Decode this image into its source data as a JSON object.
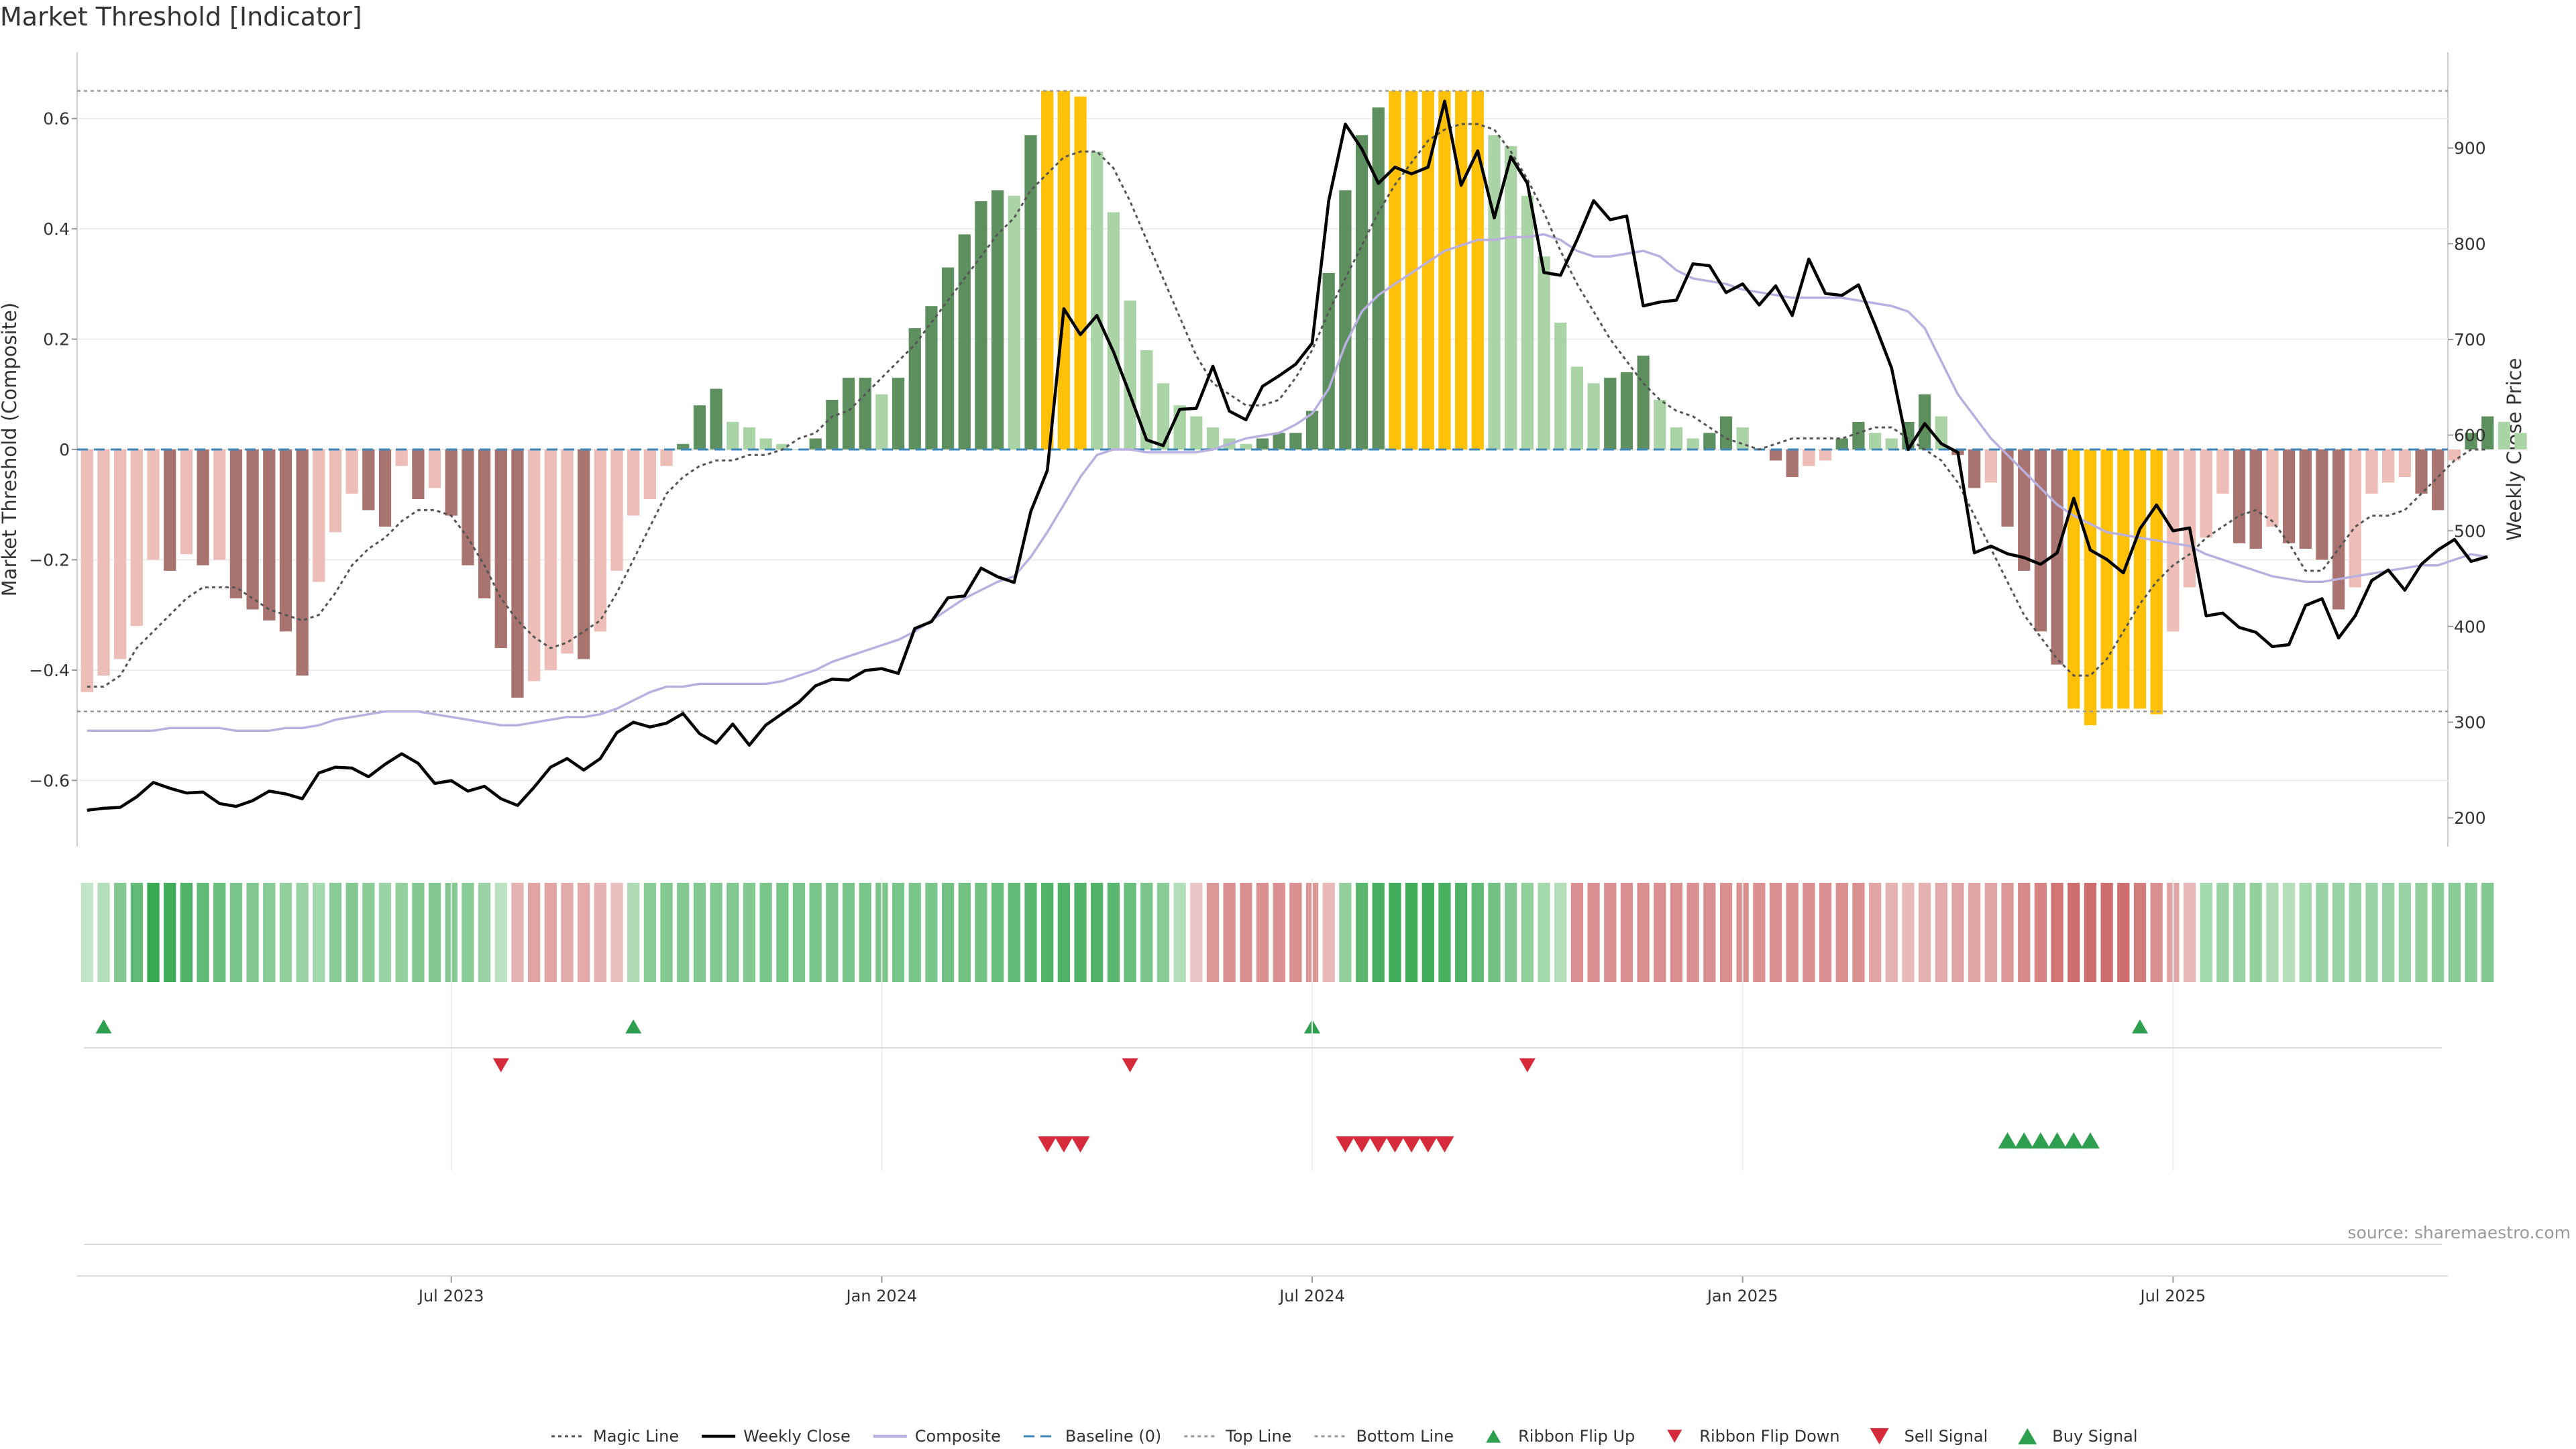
{
  "chart_data": {
    "type": "bar",
    "title": "Market Threshold [Indicator]",
    "ylabel": "Market Threshold (Composite)",
    "y2label": "Weekly Close Price",
    "source": "source: sharemaestro.com",
    "ylim": [
      -0.72,
      0.72
    ],
    "y2lim": [
      170,
      1000
    ],
    "yticks": [
      0.6,
      0.4,
      0.2,
      0,
      -0.2,
      -0.4,
      -0.6
    ],
    "ytick_labels": [
      "0.6",
      "0.4",
      "0.2",
      "0",
      "−0.2",
      "−0.4",
      "−0.6"
    ],
    "y2ticks": [
      900,
      800,
      700,
      600,
      500,
      400,
      300,
      200
    ],
    "xticks": [
      {
        "label": "Jul 2023",
        "x": 22
      },
      {
        "label": "Jan 2024",
        "x": 48
      },
      {
        "label": "Jul 2024",
        "x": 74
      },
      {
        "label": "Jan 2025",
        "x": 100
      },
      {
        "label": "Jul 2025",
        "x": 126
      }
    ],
    "top_line": 0.65,
    "bottom_line": -0.475,
    "baseline": 0,
    "x_range": [
      -0.6,
      142.6
    ],
    "composite": [
      -0.44,
      -0.41,
      -0.38,
      -0.32,
      -0.2,
      -0.22,
      -0.19,
      -0.21,
      -0.2,
      -0.27,
      -0.29,
      -0.31,
      -0.33,
      -0.41,
      -0.24,
      -0.15,
      -0.08,
      -0.11,
      -0.14,
      -0.03,
      -0.09,
      -0.07,
      -0.12,
      -0.21,
      -0.27,
      -0.36,
      -0.45,
      -0.42,
      -0.4,
      -0.37,
      -0.38,
      -0.33,
      -0.22,
      -0.12,
      -0.09,
      -0.03,
      0.01,
      0.08,
      0.11,
      0.05,
      0.04,
      0.02,
      0.01,
      0.0,
      0.02,
      0.09,
      0.13,
      0.13,
      0.1,
      0.13,
      0.22,
      0.26,
      0.33,
      0.39,
      0.45,
      0.47,
      0.46,
      0.57,
      0.65,
      0.65,
      0.64,
      0.54,
      0.43,
      0.27,
      0.18,
      0.12,
      0.08,
      0.06,
      0.04,
      0.02,
      0.01,
      0.02,
      0.03,
      0.03,
      0.07,
      0.32,
      0.47,
      0.57,
      0.62,
      0.65,
      0.65,
      0.65,
      0.65,
      0.65,
      0.65,
      0.57,
      0.55,
      0.46,
      0.35,
      0.23,
      0.15,
      0.12,
      0.13,
      0.14,
      0.17,
      0.09,
      0.04,
      0.02,
      0.03,
      0.06,
      0.04,
      0.0,
      -0.02,
      -0.05,
      -0.03,
      -0.02,
      0.02,
      0.05,
      0.03,
      0.02,
      0.05,
      0.1,
      0.06,
      -0.01,
      -0.07,
      -0.06,
      -0.14,
      -0.22,
      -0.33,
      -0.39,
      -0.47,
      -0.5,
      -0.47,
      -0.47,
      -0.47,
      -0.48,
      -0.33,
      -0.25,
      -0.16,
      -0.08,
      -0.17,
      -0.18,
      -0.14,
      -0.17,
      -0.18,
      -0.2,
      -0.29,
      -0.25,
      -0.08,
      -0.06,
      -0.05,
      -0.08,
      -0.11,
      -0.02,
      0.03,
      0.06,
      0.05,
      0.03
    ],
    "weekly_close": [
      208,
      210,
      211,
      222,
      237,
      231,
      226,
      227,
      215,
      212,
      218,
      228,
      225,
      220,
      247,
      253,
      252,
      243,
      256,
      267,
      257,
      236,
      239,
      228,
      233,
      220,
      213,
      232,
      253,
      262,
      250,
      262,
      289,
      300,
      295,
      299,
      309,
      288,
      278,
      298,
      276,
      297,
      309,
      321,
      338,
      345,
      344,
      354,
      356,
      351,
      398,
      405,
      430,
      432,
      461,
      452,
      446,
      520,
      563,
      732,
      705,
      725,
      687,
      642,
      595,
      589,
      627,
      628,
      672,
      625,
      616,
      651,
      662,
      674,
      696,
      845,
      925,
      899,
      863,
      880,
      873,
      880,
      949,
      861,
      897,
      827,
      891,
      863,
      770,
      767,
      804,
      845,
      825,
      829,
      735,
      739,
      741,
      779,
      777,
      749,
      758,
      736,
      756,
      725,
      784,
      748,
      746,
      757,
      715,
      670,
      585,
      612,
      591,
      582,
      477,
      484,
      476,
      472,
      465,
      477,
      534,
      480,
      470,
      456,
      502,
      527,
      500,
      503,
      411,
      414,
      399,
      394,
      379,
      381,
      422,
      429,
      388,
      411,
      448,
      459,
      438,
      465,
      480,
      491,
      468,
      473
    ],
    "magic_line": [
      -0.43,
      -0.43,
      -0.41,
      -0.36,
      -0.33,
      -0.3,
      -0.27,
      -0.25,
      -0.25,
      -0.25,
      -0.27,
      -0.29,
      -0.3,
      -0.31,
      -0.3,
      -0.26,
      -0.21,
      -0.18,
      -0.16,
      -0.13,
      -0.11,
      -0.11,
      -0.12,
      -0.16,
      -0.21,
      -0.27,
      -0.31,
      -0.34,
      -0.36,
      -0.35,
      -0.33,
      -0.31,
      -0.26,
      -0.2,
      -0.14,
      -0.08,
      -0.05,
      -0.03,
      -0.02,
      -0.02,
      -0.01,
      -0.01,
      0.0,
      0.02,
      0.03,
      0.06,
      0.07,
      0.1,
      0.13,
      0.16,
      0.19,
      0.23,
      0.27,
      0.31,
      0.35,
      0.39,
      0.42,
      0.47,
      0.5,
      0.53,
      0.54,
      0.54,
      0.51,
      0.45,
      0.38,
      0.31,
      0.24,
      0.17,
      0.12,
      0.1,
      0.08,
      0.08,
      0.09,
      0.13,
      0.18,
      0.25,
      0.31,
      0.37,
      0.43,
      0.48,
      0.52,
      0.56,
      0.58,
      0.59,
      0.59,
      0.58,
      0.54,
      0.49,
      0.43,
      0.36,
      0.3,
      0.25,
      0.2,
      0.16,
      0.12,
      0.09,
      0.07,
      0.06,
      0.04,
      0.02,
      0.01,
      0.0,
      0.01,
      0.02,
      0.02,
      0.02,
      0.02,
      0.03,
      0.04,
      0.04,
      0.02,
      0.0,
      -0.02,
      -0.06,
      -0.12,
      -0.18,
      -0.24,
      -0.3,
      -0.34,
      -0.38,
      -0.41,
      -0.41,
      -0.38,
      -0.33,
      -0.28,
      -0.24,
      -0.21,
      -0.19,
      -0.16,
      -0.14,
      -0.12,
      -0.11,
      -0.13,
      -0.17,
      -0.22,
      -0.22,
      -0.18,
      -0.14,
      -0.12,
      -0.12,
      -0.11,
      -0.08,
      -0.05,
      -0.02,
      0.0,
      0.0
    ],
    "composite_smooth": [
      -0.51,
      -0.51,
      -0.51,
      -0.51,
      -0.51,
      -0.505,
      -0.505,
      -0.505,
      -0.505,
      -0.51,
      -0.51,
      -0.51,
      -0.505,
      -0.505,
      -0.5,
      -0.49,
      -0.485,
      -0.48,
      -0.475,
      -0.475,
      -0.475,
      -0.48,
      -0.485,
      -0.49,
      -0.495,
      -0.5,
      -0.5,
      -0.495,
      -0.49,
      -0.485,
      -0.485,
      -0.48,
      -0.47,
      -0.455,
      -0.44,
      -0.43,
      -0.43,
      -0.425,
      -0.425,
      -0.425,
      -0.425,
      -0.425,
      -0.42,
      -0.41,
      -0.4,
      -0.385,
      -0.375,
      -0.365,
      -0.355,
      -0.345,
      -0.33,
      -0.31,
      -0.29,
      -0.27,
      -0.255,
      -0.24,
      -0.23,
      -0.195,
      -0.15,
      -0.1,
      -0.05,
      -0.01,
      0.0,
      0.0,
      -0.005,
      -0.005,
      -0.005,
      -0.005,
      0.0,
      0.01,
      0.02,
      0.025,
      0.03,
      0.045,
      0.065,
      0.11,
      0.19,
      0.25,
      0.28,
      0.3,
      0.32,
      0.34,
      0.36,
      0.37,
      0.38,
      0.38,
      0.385,
      0.385,
      0.39,
      0.38,
      0.36,
      0.35,
      0.35,
      0.355,
      0.36,
      0.35,
      0.325,
      0.31,
      0.305,
      0.3,
      0.29,
      0.285,
      0.28,
      0.275,
      0.275,
      0.275,
      0.275,
      0.27,
      0.265,
      0.26,
      0.25,
      0.22,
      0.16,
      0.1,
      0.06,
      0.02,
      -0.01,
      -0.04,
      -0.07,
      -0.1,
      -0.12,
      -0.135,
      -0.15,
      -0.155,
      -0.16,
      -0.165,
      -0.17,
      -0.175,
      -0.19,
      -0.2,
      -0.21,
      -0.22,
      -0.23,
      -0.235,
      -0.24,
      -0.24,
      -0.235,
      -0.23,
      -0.225,
      -0.22,
      -0.215,
      -0.21,
      -0.21,
      -0.2,
      -0.19,
      -0.195
    ],
    "ribbon": [
      0.15,
      0.25,
      0.55,
      0.75,
      1.0,
      0.95,
      0.85,
      0.75,
      0.7,
      0.6,
      0.55,
      0.5,
      0.45,
      0.4,
      0.35,
      0.5,
      0.55,
      0.5,
      0.4,
      0.45,
      0.55,
      0.55,
      0.55,
      0.5,
      0.4,
      0.2,
      -0.35,
      -0.45,
      -0.45,
      -0.4,
      -0.4,
      -0.35,
      -0.25,
      0.3,
      0.5,
      0.55,
      0.55,
      0.55,
      0.55,
      0.55,
      0.55,
      0.6,
      0.6,
      0.6,
      0.6,
      0.6,
      0.6,
      0.6,
      0.6,
      0.6,
      0.6,
      0.6,
      0.65,
      0.65,
      0.65,
      0.7,
      0.75,
      0.8,
      0.85,
      0.85,
      0.85,
      0.85,
      0.8,
      0.7,
      0.6,
      0.5,
      0.25,
      -0.2,
      -0.55,
      -0.6,
      -0.6,
      -0.6,
      -0.6,
      -0.6,
      -0.55,
      -0.3,
      0.45,
      0.8,
      0.9,
      0.95,
      0.95,
      0.95,
      0.9,
      0.85,
      0.75,
      0.65,
      0.55,
      0.45,
      0.35,
      0.25,
      -0.6,
      -0.6,
      -0.6,
      -0.6,
      -0.6,
      -0.6,
      -0.6,
      -0.6,
      -0.6,
      -0.6,
      -0.6,
      -0.6,
      -0.6,
      -0.6,
      -0.6,
      -0.6,
      -0.6,
      -0.6,
      -0.45,
      -0.35,
      -0.3,
      -0.35,
      -0.4,
      -0.45,
      -0.45,
      -0.45,
      -0.55,
      -0.65,
      -0.7,
      -0.8,
      -0.85,
      -0.85,
      -0.85,
      -0.85,
      -0.75,
      -0.6,
      -0.45,
      -0.3,
      0.35,
      0.4,
      0.4,
      0.45,
      0.3,
      0.25,
      0.35,
      0.4,
      0.4,
      0.4,
      0.4,
      0.4,
      0.4,
      0.45,
      0.5,
      0.5,
      0.5,
      0.55
    ],
    "ribbon_flip_up": [
      1,
      33,
      74,
      124
    ],
    "ribbon_flip_down": [
      25,
      63,
      87
    ],
    "sell_signal": [
      58,
      59,
      60,
      76,
      77,
      78,
      79,
      80,
      81,
      82
    ],
    "buy_signal": [
      116,
      117,
      118,
      119,
      120,
      121
    ],
    "legend": [
      {
        "label": "Magic Line",
        "kind": "dotted",
        "color": "#555555"
      },
      {
        "label": "Weekly Close",
        "kind": "line",
        "color": "#000000"
      },
      {
        "label": "Composite",
        "kind": "line",
        "color": "#b9b0e0"
      },
      {
        "label": "Baseline (0)",
        "kind": "dashed",
        "color": "#3f86b8"
      },
      {
        "label": "Top Line",
        "kind": "dotted",
        "color": "#999999"
      },
      {
        "label": "Bottom Line",
        "kind": "dotted",
        "color": "#999999"
      },
      {
        "label": "Ribbon Flip Up",
        "kind": "tri-up-small",
        "color": "#2e9e4f"
      },
      {
        "label": "Ribbon Flip Down",
        "kind": "tri-down-small",
        "color": "#d62b3a"
      },
      {
        "label": "Sell Signal",
        "kind": "tri-down",
        "color": "#d62b3a"
      },
      {
        "label": "Buy Signal",
        "kind": "tri-up",
        "color": "#2e9e4f"
      }
    ],
    "colors": {
      "extreme": "#ffc107",
      "pos_strong": "#5e8f5e",
      "pos_weak": "#aad4a6",
      "neg_strong": "#a97470",
      "neg_weak": "#edbdb7",
      "grid": "#ececec"
    }
  }
}
